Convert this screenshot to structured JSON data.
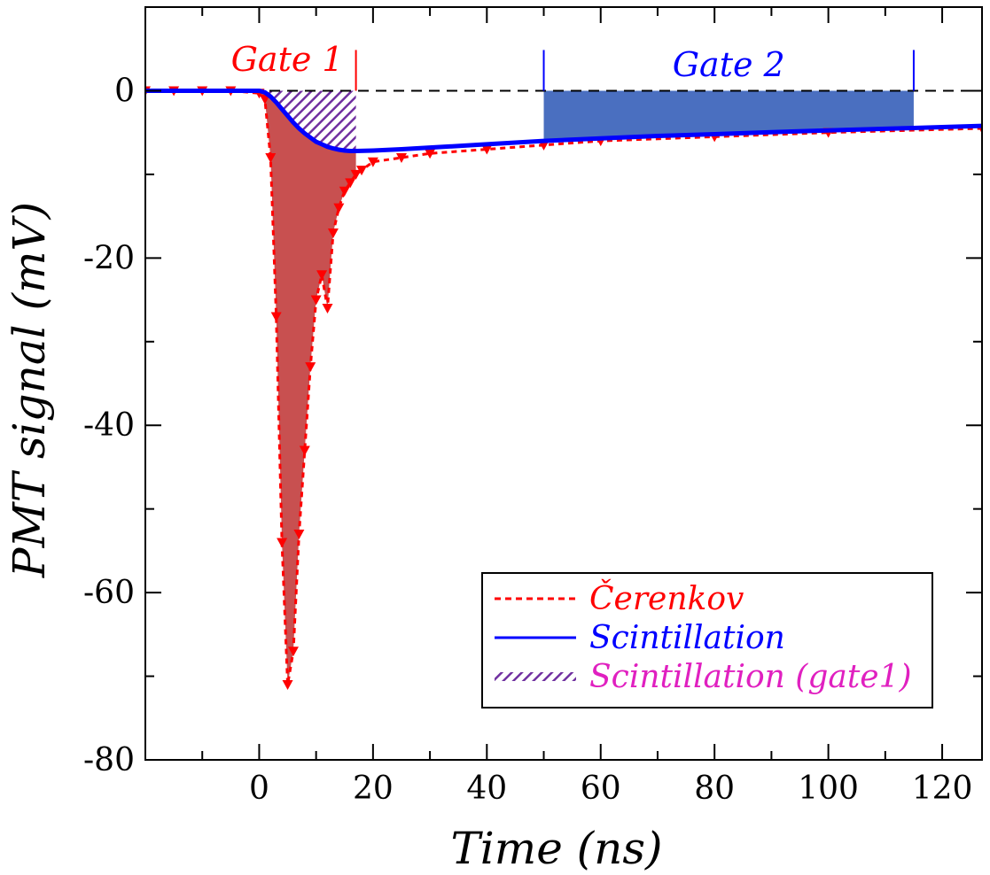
{
  "chart_data": {
    "type": "line",
    "xlabel": "Time (ns)",
    "ylabel": "PMT signal (mV)",
    "xlim": [
      -20,
      127
    ],
    "ylim": [
      -80,
      10
    ],
    "xticks": [
      0,
      20,
      40,
      60,
      80,
      100,
      120
    ],
    "yticks": [
      0,
      -20,
      -40,
      -60,
      -80
    ],
    "grid": false,
    "legend_position": "bottom-right",
    "annotations": {
      "gate1": {
        "label": "Gate 1",
        "start": 0,
        "end": 17,
        "color": "#ff0000"
      },
      "gate2": {
        "label": "Gate 2",
        "start": 50,
        "end": 115,
        "color": "#0000ff"
      }
    },
    "series": [
      {
        "name": "Čerenkov",
        "color": "#ff0000",
        "style": "dashed-with-triangle-markers",
        "x": [
          -20,
          -15,
          -10,
          -5,
          0,
          1,
          2,
          3,
          4,
          5,
          6,
          7,
          8,
          9,
          10,
          11,
          12,
          13,
          14,
          15,
          16,
          17,
          18,
          20,
          25,
          30,
          40,
          50,
          60,
          80,
          100,
          127
        ],
        "y": [
          0,
          0,
          0,
          0,
          -0.3,
          -1,
          -8,
          -27,
          -54,
          -71,
          -67,
          -53,
          -43,
          -33,
          -25,
          -22,
          -26,
          -17,
          -14,
          -12,
          -11,
          -10,
          -9.5,
          -8.5,
          -8,
          -7.5,
          -7,
          -6.5,
          -6,
          -5.5,
          -5,
          -4.5
        ]
      },
      {
        "name": "Scintillation",
        "color": "#0000ff",
        "style": "solid",
        "x": [
          -20,
          -10,
          0,
          1,
          2,
          3,
          4,
          5,
          6,
          7,
          8,
          9,
          10,
          11,
          12,
          13,
          14,
          15,
          16,
          17,
          20,
          25,
          30,
          40,
          50,
          60,
          70,
          80,
          90,
          100,
          110,
          115,
          120,
          127
        ],
        "y": [
          0,
          0,
          0,
          -0.2,
          -0.7,
          -1.4,
          -2.2,
          -3,
          -3.8,
          -4.5,
          -5.1,
          -5.6,
          -6.1,
          -6.4,
          -6.7,
          -6.9,
          -7.05,
          -7.15,
          -7.2,
          -7.2,
          -7.15,
          -7,
          -6.8,
          -6.4,
          -6,
          -5.7,
          -5.4,
          -5.2,
          -4.95,
          -4.75,
          -4.55,
          -4.45,
          -4.35,
          -4.2
        ]
      }
    ],
    "legend": [
      {
        "label": "Čerenkov",
        "color": "#ff0000",
        "style": "dashed"
      },
      {
        "label": "Scintillation",
        "color": "#0000ff",
        "style": "solid"
      },
      {
        "label": "Scintillation (gate1)",
        "color": "#e020c0",
        "style": "hatched"
      }
    ],
    "fills": {
      "cerenkov": "#c85050",
      "scint_gate1": "#7030a0",
      "gate2": "#4a6fc0"
    }
  }
}
